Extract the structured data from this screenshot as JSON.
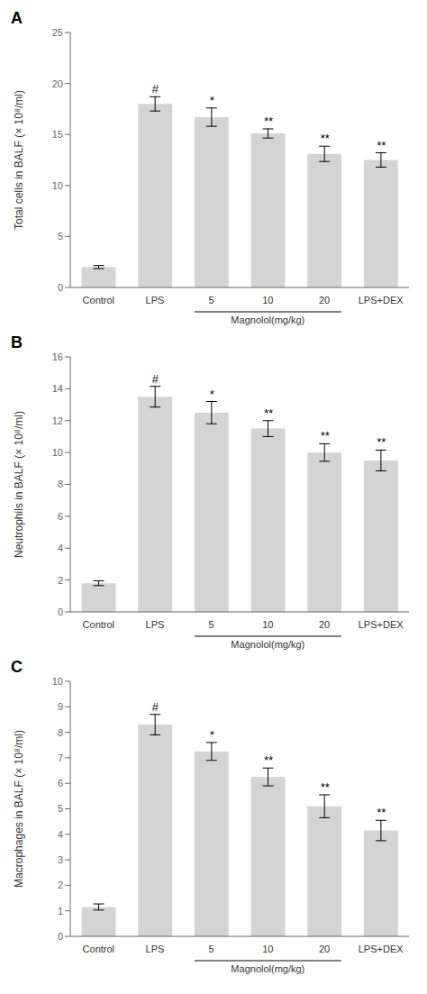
{
  "chart_data": [
    {
      "type": "bar",
      "title": "A",
      "ylabel": "Total cells in BALF (× 10⁸/ml)",
      "categories": [
        "Control",
        "LPS",
        "5",
        "10",
        "20",
        "LPS+DEX"
      ],
      "values": [
        2.0,
        18.0,
        16.7,
        15.1,
        13.1,
        12.5
      ],
      "errors": [
        0.15,
        0.7,
        0.9,
        0.45,
        0.75,
        0.7
      ],
      "annotations": [
        null,
        "#",
        "*",
        "**",
        "**",
        "**"
      ],
      "group_label": {
        "text": "Magnolol(mg/kg)",
        "categories": [
          "5",
          "10",
          "20"
        ]
      },
      "color": "#d4d4d4",
      "ylim": [
        0,
        25
      ],
      "yticks": [
        0,
        5,
        10,
        15,
        20,
        25
      ],
      "grid": false
    },
    {
      "type": "bar",
      "title": "B",
      "ylabel": "Neutrophils in BALF (× 10⁸/ml)",
      "categories": [
        "Control",
        "LPS",
        "5",
        "10",
        "20",
        "LPS+DEX"
      ],
      "values": [
        1.8,
        13.5,
        12.5,
        11.5,
        10.0,
        9.5
      ],
      "errors": [
        0.15,
        0.65,
        0.7,
        0.5,
        0.55,
        0.65
      ],
      "annotations": [
        null,
        "#",
        "*",
        "**",
        "**",
        "**"
      ],
      "group_label": {
        "text": "Magnolol(mg/kg)",
        "categories": [
          "5",
          "10",
          "20"
        ]
      },
      "color": "#d4d4d4",
      "ylim": [
        0,
        16
      ],
      "yticks": [
        0,
        2,
        4,
        6,
        8,
        10,
        12,
        14,
        16
      ],
      "grid": false
    },
    {
      "type": "bar",
      "title": "C",
      "ylabel": "Macrophages in BALF (× 10⁸/ml)",
      "categories": [
        "Control",
        "LPS",
        "5",
        "10",
        "20",
        "LPS+DEX"
      ],
      "values": [
        1.15,
        8.3,
        7.25,
        6.25,
        5.1,
        4.15
      ],
      "errors": [
        0.12,
        0.4,
        0.35,
        0.35,
        0.45,
        0.4
      ],
      "annotations": [
        null,
        "#",
        "*",
        "**",
        "**",
        "**"
      ],
      "group_label": {
        "text": "Magnolol(mg/kg)",
        "categories": [
          "5",
          "10",
          "20"
        ]
      },
      "color": "#d4d4d4",
      "ylim": [
        0,
        10
      ],
      "yticks": [
        0,
        1,
        2,
        3,
        4,
        5,
        6,
        7,
        8,
        9,
        10
      ],
      "grid": false
    }
  ]
}
